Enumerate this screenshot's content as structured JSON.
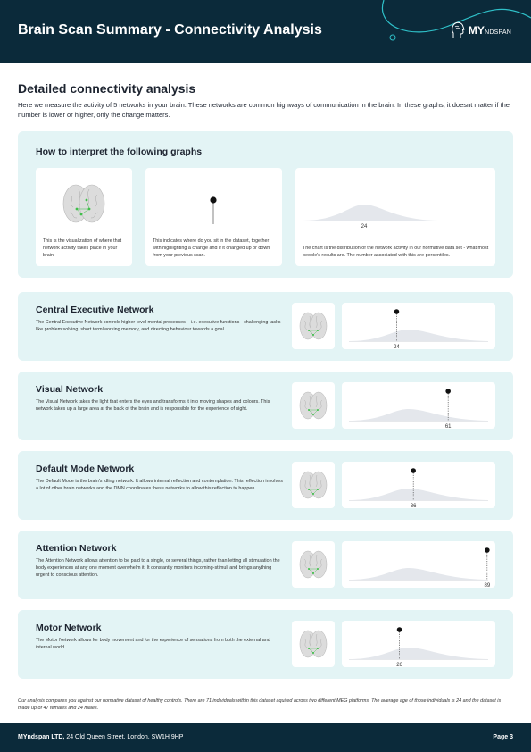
{
  "header": {
    "title": "Brain Scan Summary - Connectivity Analysis",
    "logo_main": "MY",
    "logo_small": "NDSPAN",
    "accent_color": "#2fc1c9",
    "background_color": "#0b2a3a"
  },
  "section": {
    "title": "Detailed connectivity analysis",
    "intro": "Here we measure the activity of 5 networks in your brain. These networks are common highways of communication in the brain. In these graphs, it doesnt matter if the number is lower or higher, only the change matters."
  },
  "howto": {
    "title": "How to interpret the following graphs",
    "card1_text": "This is the visualization of where that network activity takes place in your brain.",
    "card2_text": "This indicates where do you sit in the dataset, together with highlighting a change and if it changed up or down from your previous scan.",
    "card3_text": "The chart is the distribution of the network activity in our normative data set - what most people's results are. The number associated with this are percentiles.",
    "example_value": "24"
  },
  "networks": [
    {
      "name": "Central Executive Network",
      "description": "The Central Executive Network controls higher-level mental processes – i.e. executive functions - challenging tasks like problem solving, short term/working memory, and directing behaviour towards a goal.",
      "percentile": 24,
      "percentile_label": "24"
    },
    {
      "name": "Visual Network",
      "description": "The Visual Network takes the light that enters the eyes and transforms it into moving shapes and colours. This network takes up a large area at the back of the brain and is responsible for the experience of sight.",
      "percentile": 61,
      "percentile_label": "61"
    },
    {
      "name": "Default Mode Network",
      "description": "The Default Mode is the brain's idling network. It allows internal reflection and contemplation. This reflection involves a lot of other brain networks and the DMN coordinates these networks to allow this reflection to happen.",
      "percentile": 36,
      "percentile_label": "36"
    },
    {
      "name": "Attention Network",
      "description": "The Attention Network allows attention to be paid to a single, or several things, rather than letting all stimulation the body experiences at any one moment overwhelm it. It constantly monitors incoming-stimuli and brings anything urgent to conscious attention.",
      "percentile": 89,
      "percentile_label": "89"
    },
    {
      "name": "Motor Network",
      "description": "The Motor Network allows for body movement and for the experience of sensations from both the external and internal world.",
      "percentile": 26,
      "percentile_label": "26"
    }
  ],
  "footnote": "Our analysis compares you against our normative dataset of healthy controls. There are 71 individuals within this dataset aquired across two different MEG platforms. The average age of those individuals is 24 and the dataset is made up of 47 females and 24 males.",
  "footer": {
    "company": "MYndspan LTD,",
    "address": " 24 Old Queen Street, London, SW1H 9HP",
    "page": "Page 3"
  }
}
